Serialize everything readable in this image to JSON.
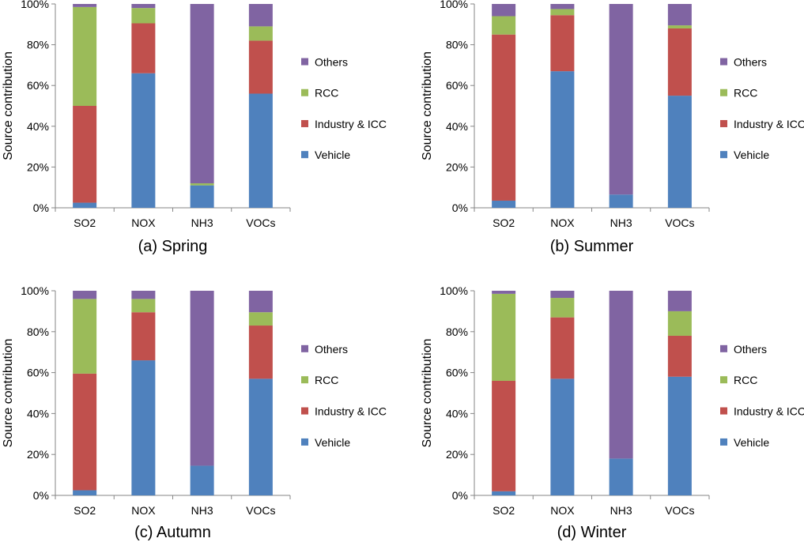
{
  "colors": {
    "Vehicle": "#4f81bd",
    "Industry & ICC": "#c0504d",
    "RCC": "#9bbb59",
    "Others": "#8064a2"
  },
  "chart_data": [
    {
      "type": "bar",
      "stacked": true,
      "title": "(a) Spring",
      "ylabel": "Source contribution",
      "ylim": [
        0,
        100
      ],
      "yticks": [
        "0%",
        "20%",
        "40%",
        "60%",
        "80%",
        "100%"
      ],
      "categories": [
        "SO2",
        "NOX",
        "NH3",
        "VOCs"
      ],
      "legend": [
        "Others",
        "RCC",
        "Industry & ICC",
        "Vehicle"
      ],
      "legend_position": "right",
      "series": [
        {
          "name": "Vehicle",
          "values": [
            2.5,
            66,
            11,
            56
          ]
        },
        {
          "name": "Industry & ICC",
          "values": [
            47.5,
            24.5,
            0,
            26
          ]
        },
        {
          "name": "RCC",
          "values": [
            48.5,
            7.5,
            1,
            7
          ]
        },
        {
          "name": "Others",
          "values": [
            1.5,
            2,
            88,
            11
          ]
        }
      ]
    },
    {
      "type": "bar",
      "stacked": true,
      "title": "(b) Summer",
      "ylabel": "Source contribution",
      "ylim": [
        0,
        100
      ],
      "yticks": [
        "0%",
        "20%",
        "40%",
        "60%",
        "80%",
        "100%"
      ],
      "categories": [
        "SO2",
        "NOX",
        "NH3",
        "VOCs"
      ],
      "legend": [
        "Others",
        "RCC",
        "Industry & ICC",
        "Vehicle"
      ],
      "legend_position": "right",
      "series": [
        {
          "name": "Vehicle",
          "values": [
            3.5,
            67,
            6.5,
            55
          ]
        },
        {
          "name": "Industry & ICC",
          "values": [
            81.5,
            27.5,
            0,
            33
          ]
        },
        {
          "name": "RCC",
          "values": [
            9,
            3,
            0,
            1.5
          ]
        },
        {
          "name": "Others",
          "values": [
            6,
            2.5,
            93.5,
            10.5
          ]
        }
      ]
    },
    {
      "type": "bar",
      "stacked": true,
      "title": "(c) Autumn",
      "ylabel": "Source contribution",
      "ylim": [
        0,
        100
      ],
      "yticks": [
        "0%",
        "20%",
        "40%",
        "60%",
        "80%",
        "100%"
      ],
      "categories": [
        "SO2",
        "NOX",
        "NH3",
        "VOCs"
      ],
      "legend": [
        "Others",
        "RCC",
        "Industry & ICC",
        "Vehicle"
      ],
      "legend_position": "right",
      "series": [
        {
          "name": "Vehicle",
          "values": [
            2.5,
            66,
            14.5,
            57
          ]
        },
        {
          "name": "Industry & ICC",
          "values": [
            57,
            23.5,
            0,
            26
          ]
        },
        {
          "name": "RCC",
          "values": [
            36.5,
            6.5,
            0,
            6.5
          ]
        },
        {
          "name": "Others",
          "values": [
            4,
            4,
            85.5,
            10.5
          ]
        }
      ]
    },
    {
      "type": "bar",
      "stacked": true,
      "title": "(d) Winter",
      "ylabel": "Source contribution",
      "ylim": [
        0,
        100
      ],
      "yticks": [
        "0%",
        "20%",
        "40%",
        "60%",
        "80%",
        "100%"
      ],
      "categories": [
        "SO2",
        "NOX",
        "NH3",
        "VOCs"
      ],
      "legend": [
        "Others",
        "RCC",
        "Industry & ICC",
        "Vehicle"
      ],
      "legend_position": "right",
      "series": [
        {
          "name": "Vehicle",
          "values": [
            2,
            57,
            18,
            58
          ]
        },
        {
          "name": "Industry & ICC",
          "values": [
            54,
            30,
            0,
            20
          ]
        },
        {
          "name": "RCC",
          "values": [
            42.5,
            9.5,
            0,
            12
          ]
        },
        {
          "name": "Others",
          "values": [
            1.5,
            3.5,
            82,
            10
          ]
        }
      ]
    }
  ]
}
